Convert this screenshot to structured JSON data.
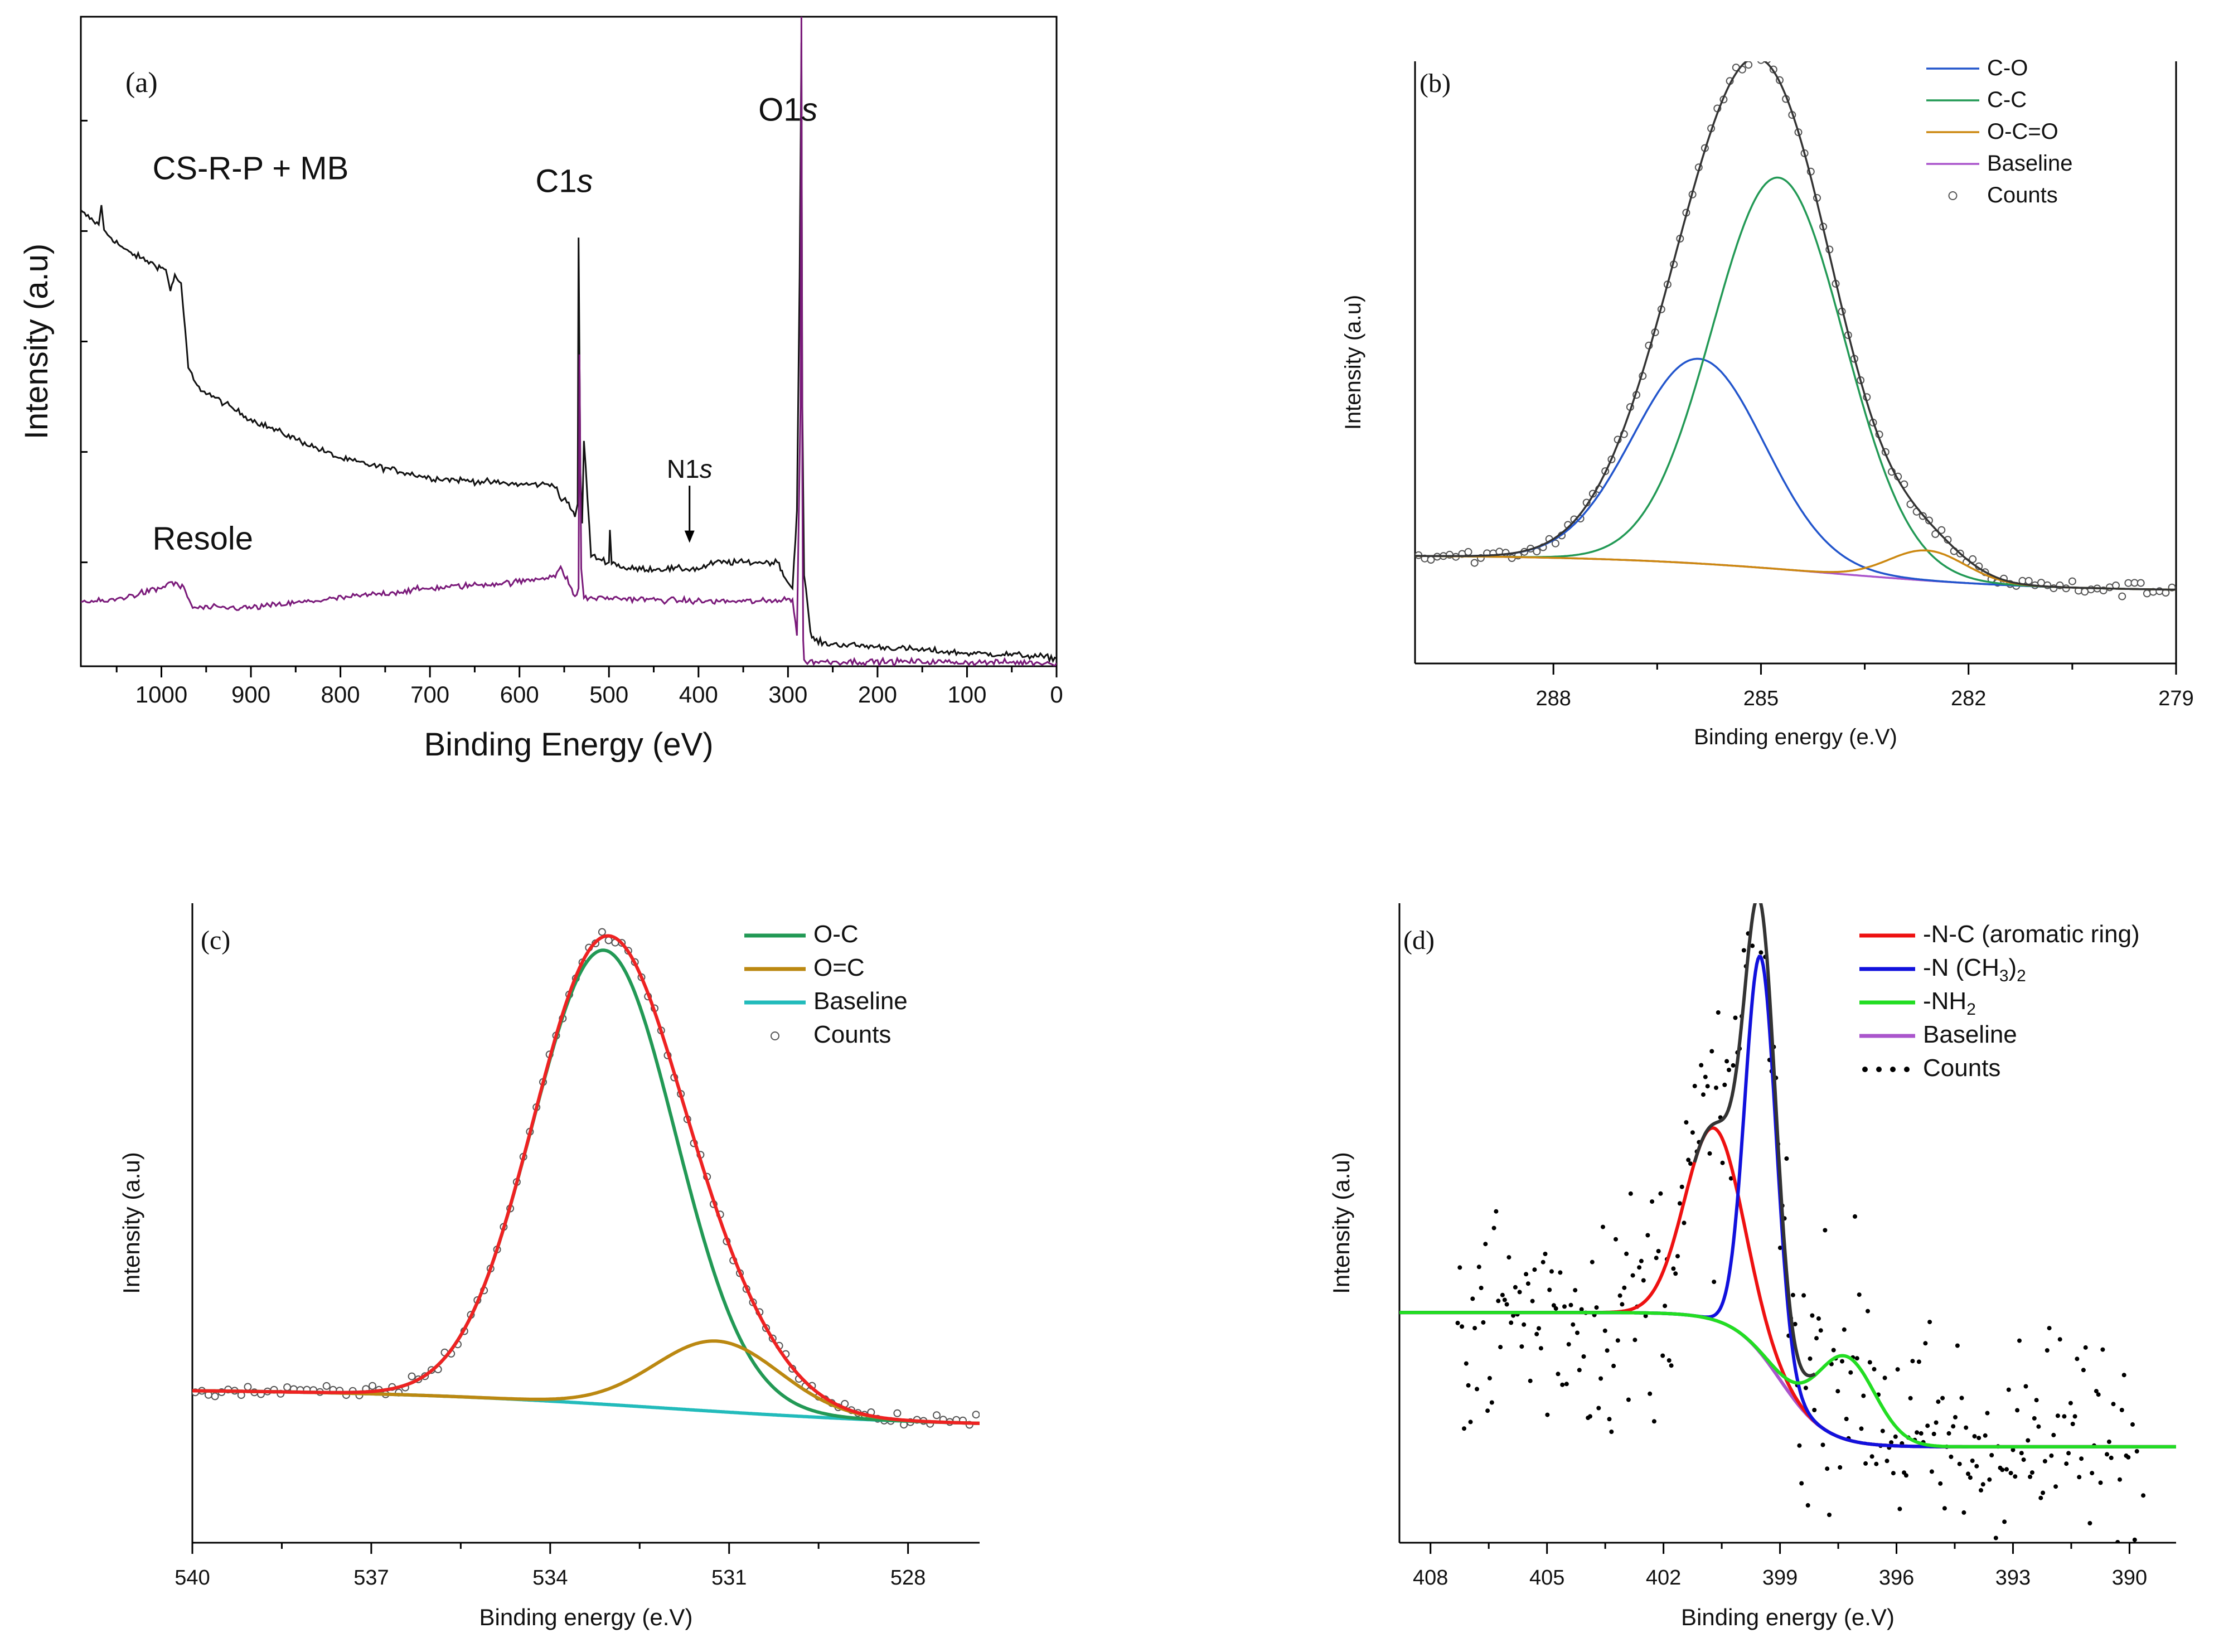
{
  "chart_data": [
    {
      "panel": "a",
      "type": "line",
      "panel_label": "(a)",
      "xlabel": "Binding Energy  (eV)",
      "ylabel": "Intensity (a.u)",
      "xlim": [
        1090,
        0
      ],
      "ylim": [
        0,
        100
      ],
      "x_ticks": [
        "1000",
        "900",
        "800",
        "700",
        "600",
        "500",
        "400",
        "300",
        "200",
        "100",
        "0"
      ],
      "annotations": [
        {
          "label": "CS-R-P + MB",
          "x": 1010,
          "y": 75
        },
        {
          "label": "Resole",
          "x": 1010,
          "y": 18
        },
        {
          "label": "C1",
          "italic": "s",
          "x": 550,
          "y": 73
        },
        {
          "label": "O1",
          "italic": "s",
          "x": 300,
          "y": 84
        },
        {
          "label": "N1",
          "italic": "s",
          "x": 410,
          "y": 29,
          "arrow_to_y": 19
        }
      ],
      "series": [
        {
          "name": "CS-R-P + MB",
          "color": "#111111",
          "x": [
            1090,
            1070,
            1067,
            1064,
            1040,
            1010,
            995,
            990,
            985,
            978,
            975,
            970,
            960,
            900,
            800,
            700,
            600,
            560,
            555,
            545,
            538,
            535,
            534,
            532,
            530,
            528,
            520,
            500,
            499,
            497,
            480,
            420,
            400,
            380,
            340,
            310,
            305,
            295,
            290,
            287,
            285,
            284,
            282,
            280,
            275,
            270,
            260,
            200,
            100,
            50,
            20,
            0
          ],
          "y": [
            70,
            68,
            71,
            67,
            64,
            62,
            61,
            58,
            60,
            59,
            54,
            46,
            43,
            38,
            32,
            29,
            28,
            28,
            26,
            25,
            23,
            25,
            66,
            30,
            22,
            35,
            17,
            16,
            21,
            16,
            15,
            15,
            15,
            16,
            16,
            16,
            14,
            12,
            24,
            60,
            96,
            40,
            14,
            12,
            5,
            4,
            3.5,
            3,
            2,
            1.8,
            1.5,
            1.2
          ]
        },
        {
          "name": "Resole",
          "color": "#7a1a7a",
          "x": [
            1090,
            1060,
            1000,
            990,
            975,
            965,
            955,
            900,
            800,
            700,
            600,
            560,
            554,
            545,
            540,
            536,
            534,
            533,
            531,
            528,
            520,
            500,
            400,
            320,
            300,
            295,
            290,
            286,
            285,
            284,
            283,
            282,
            280,
            275,
            260,
            200,
            150,
            100,
            50,
            0
          ],
          "y": [
            10,
            10,
            12,
            13,
            12,
            9,
            9,
            9,
            10.5,
            12,
            13,
            14,
            15,
            13,
            11,
            11,
            12,
            48,
            15,
            10.5,
            10.5,
            10.5,
            10,
            10,
            10.5,
            10,
            5,
            40,
            100,
            30,
            4,
            1,
            0.8,
            0.7,
            0.7,
            0.7,
            0.7,
            0.6,
            0.6,
            0.5
          ]
        }
      ]
    },
    {
      "panel": "b",
      "type": "line",
      "panel_label": "(b)",
      "xlabel": "Binding energy (e.V)",
      "ylabel": "Intensity (a.u)",
      "xlim": [
        290,
        279
      ],
      "ylim": [
        0,
        100
      ],
      "x_ticks": [
        "288",
        "285",
        "282",
        "279"
      ],
      "legend": [
        "C-O",
        "C-C",
        "O-C=O",
        "Baseline",
        "Counts"
      ],
      "legend_position": "top-right",
      "series": [
        {
          "name": "C-O",
          "color": "#2255cc",
          "kind": "gauss",
          "center": 285.9,
          "height": 34,
          "width": 0.95
        },
        {
          "name": "C-C",
          "color": "#229955",
          "kind": "gauss",
          "center": 284.75,
          "height": 65,
          "width": 0.95
        },
        {
          "name": "O-C=O",
          "color": "#cc8811",
          "kind": "gauss",
          "center": 282.6,
          "height": 5,
          "width": 0.55
        },
        {
          "name": "Baseline",
          "color": "#aa55cc",
          "kind": "baseline",
          "left": 18,
          "right": 12,
          "center": 284,
          "slope": 1.6
        },
        {
          "name": "Envelope",
          "color": "#333333",
          "kind": "sum",
          "of": [
            "C-O",
            "C-C",
            "O-C=O"
          ]
        },
        {
          "name": "Counts",
          "color": "#555555",
          "kind": "points",
          "step": 0.09,
          "noise": 1.2
        }
      ]
    },
    {
      "panel": "c",
      "type": "line",
      "panel_label": "(c)",
      "xlabel": "Binding energy (e.V)",
      "ylabel": "Intensity (a.u)",
      "xlim": [
        540,
        526.8
      ],
      "ylim": [
        0,
        100
      ],
      "x_ticks": [
        "540",
        "537",
        "534",
        "531",
        "528"
      ],
      "legend": [
        "O-C",
        "O=C",
        "Baseline",
        "Counts"
      ],
      "legend_position": "top-right",
      "series": [
        {
          "name": "O-C",
          "color": "#229955",
          "kind": "gauss",
          "center": 533.1,
          "height": 71,
          "width": 1.2
        },
        {
          "name": "O=C",
          "color": "#bb8811",
          "kind": "gauss",
          "center": 531.2,
          "height": 11,
          "width": 1.05
        },
        {
          "name": "Baseline",
          "color": "#22bbbb",
          "kind": "baseline",
          "left": 24,
          "right": 18,
          "center": 532,
          "slope": 2.5
        },
        {
          "name": "Envelope",
          "color": "#ee2222",
          "kind": "sum",
          "of": [
            "O-C",
            "O=C"
          ]
        },
        {
          "name": "Counts",
          "color": "#555555",
          "kind": "points",
          "step": 0.11,
          "noise": 1.0
        }
      ]
    },
    {
      "panel": "d",
      "type": "line",
      "panel_label": "(d)",
      "xlabel": "Binding energy (e.V)",
      "ylabel": "Intensity (a.u)",
      "xlim": [
        408.8,
        388.8
      ],
      "ylim": [
        0,
        100
      ],
      "x_ticks": [
        "408",
        "405",
        "402",
        "399",
        "396",
        "393",
        "390"
      ],
      "legend": [
        {
          "label": "-N-C (aromatic ring)"
        },
        {
          "label": "-N (CH",
          "sub": "3",
          "tail": ")",
          "sub2": "2"
        },
        {
          "label": "-NH",
          "sub": "2"
        },
        {
          "label": "Baseline"
        },
        {
          "label": "Counts"
        }
      ],
      "legend_position": "top-right",
      "series": [
        {
          "name": "-N-C (aromatic ring)",
          "color": "#ee1111",
          "kind": "gauss",
          "center": 400.7,
          "height": 30,
          "width": 0.75
        },
        {
          "name": "-N (CH3)2",
          "color": "#1111dd",
          "kind": "gauss",
          "center": 399.5,
          "height": 62,
          "width": 0.4
        },
        {
          "name": "-NH2",
          "color": "#22dd22",
          "kind": "gauss",
          "center": 397.3,
          "height": 13,
          "width": 0.75
        },
        {
          "name": "Baseline",
          "color": "#aa55cc",
          "kind": "baseline",
          "left": 36,
          "right": 15,
          "center": 399,
          "slope": 0.6
        },
        {
          "name": "Envelope",
          "color": "#333333",
          "kind": "sum",
          "of": [
            "-N-C (aromatic ring)",
            "-N (CH3)2",
            "-NH2"
          ]
        },
        {
          "name": "Counts",
          "color": "#000000",
          "kind": "points",
          "step": 0.055,
          "noise": 18
        }
      ]
    }
  ]
}
